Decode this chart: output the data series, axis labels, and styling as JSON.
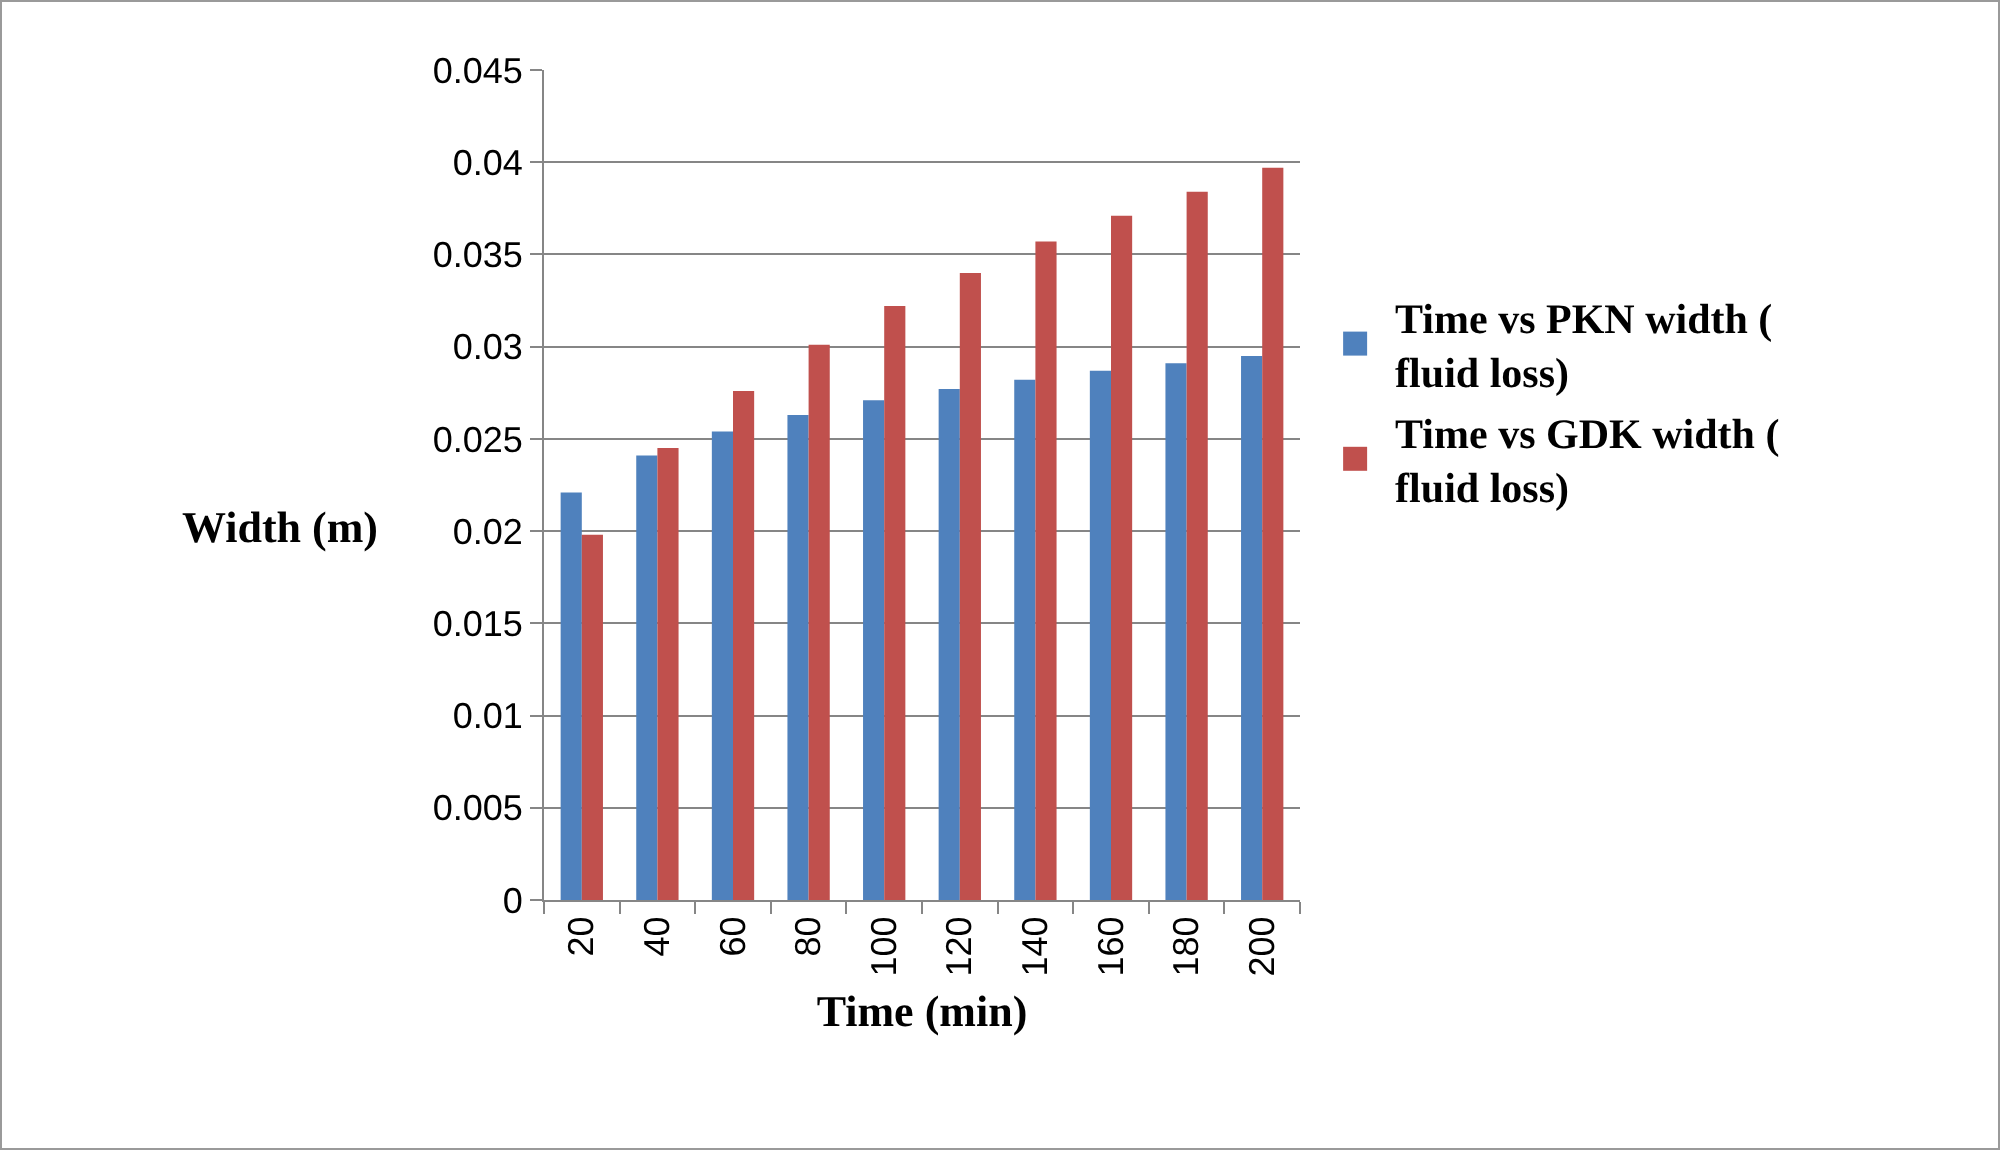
{
  "chart_data": {
    "type": "bar",
    "xlabel": "Time (min)",
    "ylabel": "Width (m)",
    "categories": [
      "20",
      "40",
      "60",
      "80",
      "100",
      "120",
      "140",
      "160",
      "180",
      "200"
    ],
    "series": [
      {
        "name": "Time vs PKN width ( fluid loss)",
        "color": "#4f81bd",
        "values": [
          0.0221,
          0.0241,
          0.0254,
          0.0263,
          0.0271,
          0.0277,
          0.0282,
          0.0287,
          0.0291,
          0.0295
        ]
      },
      {
        "name": "Time vs GDK width ( fluid loss)",
        "color": "#c0504d",
        "values": [
          0.0198,
          0.0245,
          0.0276,
          0.0301,
          0.0322,
          0.034,
          0.0357,
          0.0371,
          0.0384,
          0.0397
        ]
      }
    ],
    "ylim": [
      0,
      0.045
    ],
    "yticks": [
      0,
      0.005,
      0.01,
      0.015,
      0.02,
      0.025,
      0.03,
      0.035,
      0.04,
      0.045
    ],
    "grid": "y",
    "legend": "right"
  }
}
